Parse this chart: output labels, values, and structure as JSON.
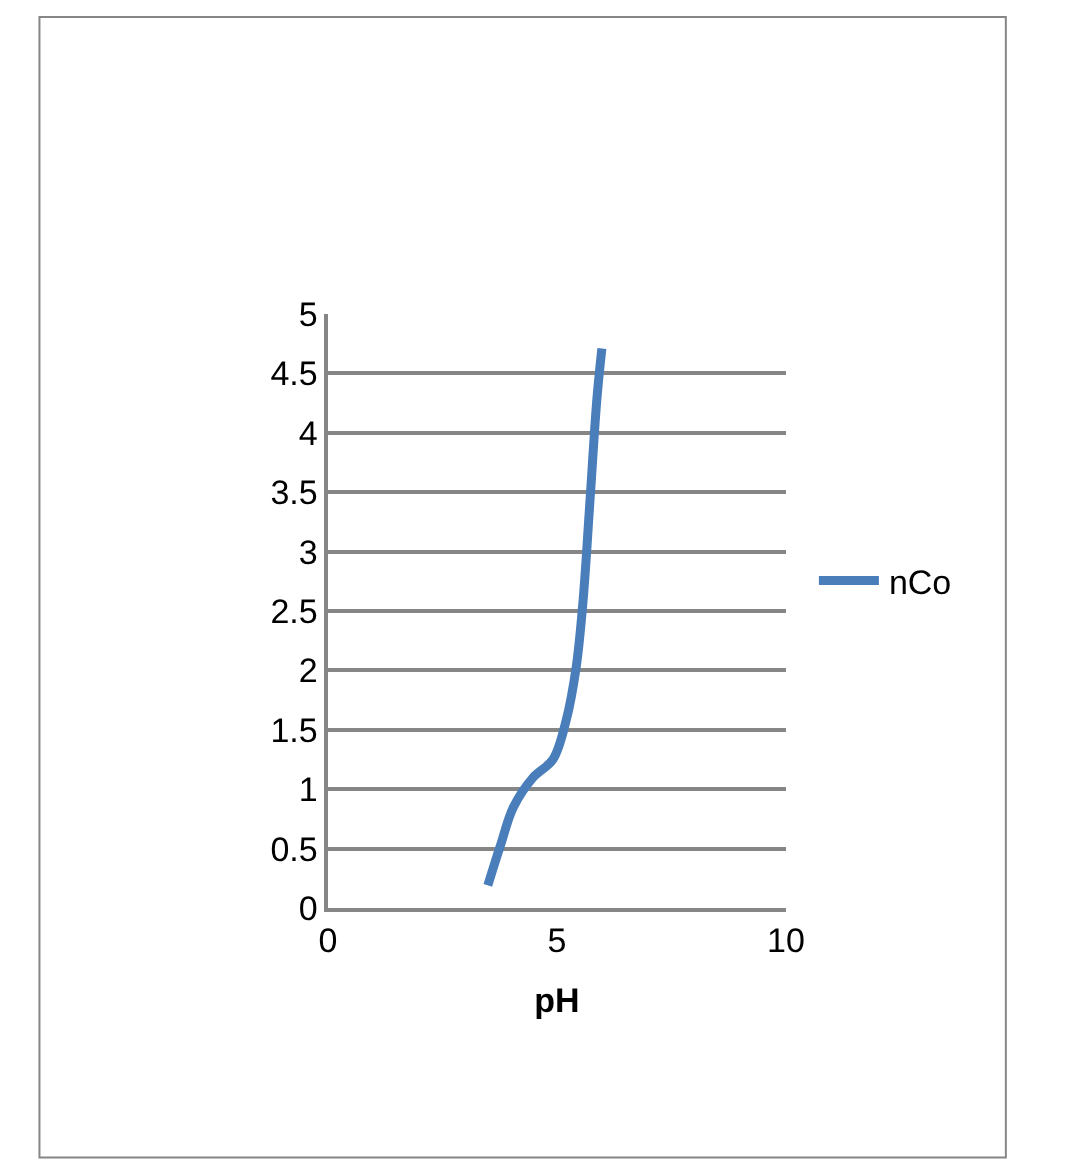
{
  "chart_data": {
    "type": "line",
    "xlabel": "pH",
    "x": [
      3.49,
      3.76,
      4.05,
      4.48,
      4.91,
      5.2,
      5.42,
      5.57,
      5.72,
      5.87,
      5.98
    ],
    "series": [
      {
        "name": "nCo",
        "color": "#4a7ebb",
        "values": [
          0.19,
          0.52,
          0.85,
          1.1,
          1.25,
          1.58,
          2.03,
          2.59,
          3.43,
          4.28,
          4.71
        ]
      }
    ],
    "xlim": [
      0,
      10
    ],
    "xticks": [
      0,
      5,
      10
    ],
    "ylim": [
      0,
      5
    ],
    "yticks": [
      0,
      0.5,
      1,
      1.5,
      2,
      2.5,
      3,
      3.5,
      4,
      4.5,
      5
    ],
    "grid": "y",
    "legend": "right",
    "marker": "none",
    "line_style": "solid"
  }
}
